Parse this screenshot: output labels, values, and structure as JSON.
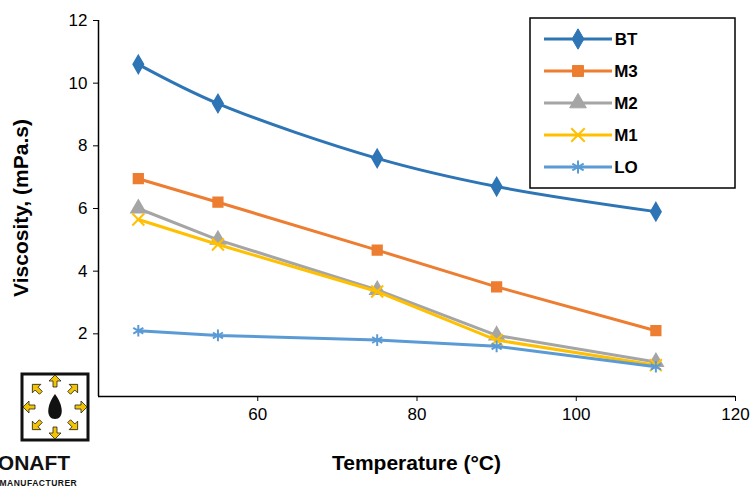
{
  "chart_data": {
    "type": "line",
    "x_label": "Temperature (°C)",
    "y_label": "Viscosity, (mPa.s)",
    "x": [
      45,
      55,
      75,
      90,
      110
    ],
    "series": [
      {
        "name": "BT",
        "color": "#2e75b6",
        "marker": "diamond",
        "line_style": "smooth",
        "values": [
          10.6,
          9.35,
          7.6,
          6.7,
          5.9
        ]
      },
      {
        "name": "M3",
        "color": "#ed7d31",
        "marker": "square",
        "line_style": "solid",
        "values": [
          6.95,
          6.2,
          4.67,
          3.5,
          2.1
        ]
      },
      {
        "name": "M2",
        "color": "#a5a5a5",
        "marker": "triangle",
        "line_style": "solid",
        "values": [
          6.0,
          5.0,
          3.4,
          1.95,
          1.1
        ]
      },
      {
        "name": "M1",
        "color": "#ffc000",
        "marker": "x",
        "line_style": "solid",
        "values": [
          5.65,
          4.85,
          3.35,
          1.8,
          1.0
        ]
      },
      {
        "name": "LO",
        "color": "#5b9bd5",
        "marker": "asterisk",
        "line_style": "solid",
        "values": [
          2.1,
          1.95,
          1.8,
          1.6,
          0.95
        ]
      }
    ],
    "xlim": [
      40,
      120
    ],
    "xticks": [
      60,
      80,
      100,
      120
    ],
    "ylim": [
      0,
      12
    ],
    "yticks": [
      2,
      4,
      6,
      8,
      10,
      12
    ],
    "grid": false,
    "legend": "top-right",
    "annotations": [
      "PETRONAFT",
      "PETROLEUM MANUFACTURER"
    ]
  }
}
